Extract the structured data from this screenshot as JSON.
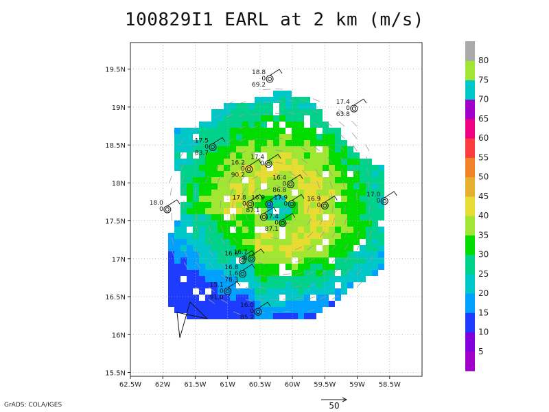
{
  "title": "100829I1 EARL at 2 km (m/s)",
  "credit": "GrADS: COLA/IGES",
  "vector_scale_label": "50",
  "map": {
    "lon_range": [
      -62.5,
      -58.0
    ],
    "lat_range": [
      15.45,
      19.85
    ],
    "x_ticks": [
      "62.5W",
      "62W",
      "61.5W",
      "61W",
      "60.5W",
      "60W",
      "59.5W",
      "59W",
      "58.5W"
    ],
    "y_ticks": [
      "15.5N",
      "16N",
      "16.5N",
      "17N",
      "17.5N",
      "18N",
      "18.5N",
      "19N",
      "19.5N"
    ],
    "grid": true,
    "storm_center": [
      -60.27,
      17.7
    ]
  },
  "colorbar": {
    "labels": [
      "5",
      "10",
      "15",
      "20",
      "25",
      "30",
      "35",
      "40",
      "45",
      "50",
      "55",
      "60",
      "65",
      "70",
      "75",
      "80"
    ],
    "colors": [
      "#a000c8",
      "#8200dc",
      "#1e3cff",
      "#00a0ff",
      "#00c8c8",
      "#00d28c",
      "#00dc00",
      "#a0e632",
      "#e6dc32",
      "#e6af2d",
      "#f08228",
      "#fa3c3c",
      "#f00082",
      "#a000c8",
      "#00c8c8",
      "#a0e632",
      "#aaaaaa"
    ]
  },
  "stations": [
    {
      "label1": "18.8",
      "label2": "0",
      "label3": "69.2",
      "lon": -60.35,
      "lat": 19.37
    },
    {
      "label1": "17.4",
      "label2": "0",
      "label3": "63.8",
      "lon": -59.05,
      "lat": 18.98
    },
    {
      "label1": "17.5",
      "label2": "0",
      "label3": "83.7",
      "lon": -61.23,
      "lat": 18.47
    },
    {
      "label1": "17.4",
      "label2": "0",
      "label3": "",
      "lon": -60.37,
      "lat": 18.25
    },
    {
      "label1": "16.2",
      "label2": "0",
      "label3": "90.2",
      "lon": -60.67,
      "lat": 18.18
    },
    {
      "label1": "16.4",
      "label2": "0",
      "label3": "86.8",
      "lon": -60.03,
      "lat": 17.98
    },
    {
      "label1": "18.0",
      "label2": "0",
      "label3": "",
      "lon": -61.93,
      "lat": 17.65
    },
    {
      "label1": "17.8",
      "label2": "0",
      "label3": "",
      "lon": -60.65,
      "lat": 17.72
    },
    {
      "label1": "16.9",
      "label2": "",
      "label3": "",
      "lon": -60.36,
      "lat": 17.72
    },
    {
      "label1": "17.9",
      "label2": "0",
      "label3": "",
      "lon": -60.01,
      "lat": 17.72
    },
    {
      "label1": "16.9",
      "label2": "0",
      "label3": "",
      "lon": -59.5,
      "lat": 17.7
    },
    {
      "label1": "17.0",
      "label2": "0",
      "label3": "",
      "lon": -58.58,
      "lat": 17.76
    },
    {
      "label1": "87.1",
      "label2": "",
      "label3": "",
      "lon": -60.44,
      "lat": 17.55
    },
    {
      "label1": "17.4",
      "label2": "0",
      "label3": "87.1",
      "lon": -60.15,
      "lat": 17.47
    },
    {
      "label1": "16.7",
      "label2": "0",
      "label3": "",
      "lon": -60.63,
      "lat": 17.0
    },
    {
      "label1": "16.6",
      "label2": "",
      "label3": "",
      "lon": -60.77,
      "lat": 16.98
    },
    {
      "label1": "16.8",
      "label2": "1.6",
      "label3": "78.3",
      "lon": -60.77,
      "lat": 16.8
    },
    {
      "label1": "15.1",
      "label2": "0",
      "label3": "91.0",
      "lon": -61.0,
      "lat": 16.57
    },
    {
      "label1": "16.0",
      "label2": "0",
      "label3": "85.2",
      "lon": -60.53,
      "lat": 16.3
    }
  ]
}
